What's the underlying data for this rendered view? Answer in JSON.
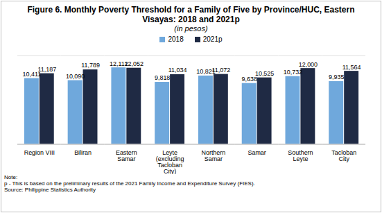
{
  "chart_data": {
    "type": "bar",
    "title": "Figure 6. Monthly Poverty Threshold for a Family of Five by Province/HUC, Eastern Visayas: 2018 and 2021p",
    "subtitle": "(in pesos)",
    "categories": [
      "Region VIII",
      "Biliran",
      "Eastern Samar",
      "Leyte (excluding Tacloban City)",
      "Northern Samar",
      "Samar",
      "Southern Leyte",
      "Tacloban City"
    ],
    "series": [
      {
        "name": "2018",
        "color": "#6fa8dc",
        "values": [
          10411,
          10090,
          12112,
          9818,
          10821,
          9638,
          10732,
          9935
        ],
        "value_labels": [
          "10,411",
          "10,090",
          "12,112",
          "9,818",
          "10,821",
          "9,638",
          "10,732",
          "9,935"
        ]
      },
      {
        "name": "2021p",
        "color": "#1f2a44",
        "values": [
          11187,
          11789,
          12052,
          11034,
          11072,
          10525,
          12000,
          11564
        ],
        "value_labels": [
          "11,187",
          "11,789",
          "12,052",
          "11,034",
          "11,072",
          "10,525",
          "12,000",
          "11,564"
        ]
      }
    ],
    "ylim": [
      0,
      14000
    ],
    "data_labels": true,
    "tick_labels": "x",
    "legend": "top",
    "notes": [
      "Note:",
      "p - This is based on the preliminary results of the 2021 Family Income and Expenditure Survey (FIES).",
      "Source: Philippine Statistics Authority"
    ]
  }
}
